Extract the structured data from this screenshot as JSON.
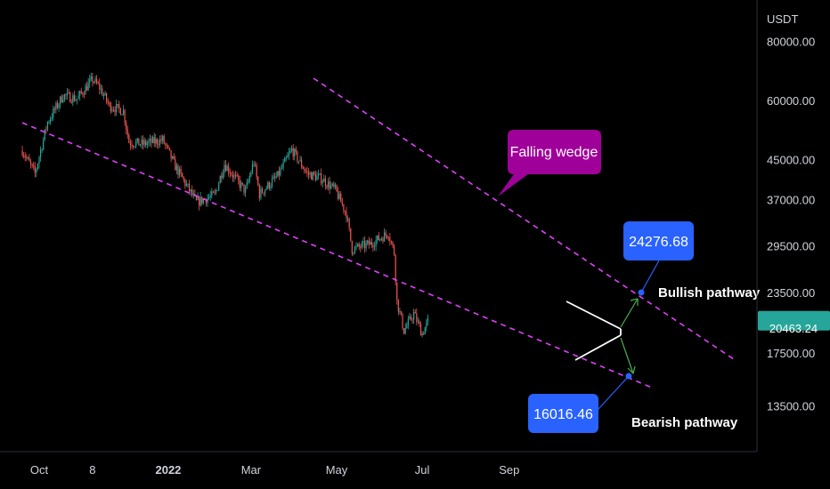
{
  "chart_data": {
    "type": "candlestick",
    "y_scale": "log",
    "currency": "USDT",
    "ylim": [
      10800,
      98000
    ],
    "price_ticks": [
      80000.0,
      60000.0,
      45000.0,
      37000.0,
      29500.0,
      23500.0,
      17500.0,
      13500.0
    ],
    "price_tick_labels": [
      "80000.00",
      "60000.00",
      "45000.00",
      "37000.00",
      "29500.00",
      "23500.00",
      "17500.00",
      "13500.00"
    ],
    "x_ticks": [
      {
        "label": "Oct",
        "date": "2021-10-01",
        "bold": false
      },
      {
        "label": "8",
        "date": "2021-11-08",
        "bold": false
      },
      {
        "label": "2022",
        "date": "2022-01-01",
        "bold": true
      },
      {
        "label": "Mar",
        "date": "2022-03-01",
        "bold": false
      },
      {
        "label": "May",
        "date": "2022-05-01",
        "bold": false
      },
      {
        "label": "Jul",
        "date": "2022-07-01",
        "bold": false
      },
      {
        "label": "Sep",
        "date": "2022-09-01",
        "bold": false
      }
    ],
    "current_price": {
      "label": "20463.24",
      "value": 20463.24
    },
    "price_path": [
      [
        "2021-09-19",
        47000
      ],
      [
        "2021-09-28",
        42000
      ],
      [
        "2021-10-07",
        54000
      ],
      [
        "2021-10-18",
        61500
      ],
      [
        "2021-10-28",
        60500
      ],
      [
        "2021-11-08",
        66500
      ],
      [
        "2021-11-13",
        64000
      ],
      [
        "2021-11-20",
        58500
      ],
      [
        "2021-11-30",
        57000
      ],
      [
        "2021-12-04",
        49000
      ],
      [
        "2021-12-14",
        48500
      ],
      [
        "2021-12-28",
        49500
      ],
      [
        "2022-01-06",
        43500
      ],
      [
        "2022-01-21",
        36500
      ],
      [
        "2022-02-03",
        37800
      ],
      [
        "2022-02-10",
        44000
      ],
      [
        "2022-02-25",
        38500
      ],
      [
        "2022-03-03",
        44500
      ],
      [
        "2022-03-07",
        38000
      ],
      [
        "2022-03-20",
        41500
      ],
      [
        "2022-03-30",
        47200
      ],
      [
        "2022-04-10",
        42000
      ],
      [
        "2022-04-20",
        41000
      ],
      [
        "2022-04-30",
        38800
      ],
      [
        "2022-05-08",
        34500
      ],
      [
        "2022-05-12",
        29000
      ],
      [
        "2022-05-25",
        29800
      ],
      [
        "2022-06-07",
        31400
      ],
      [
        "2022-06-11",
        28500
      ],
      [
        "2022-06-13",
        22500
      ],
      [
        "2022-06-18",
        19500
      ],
      [
        "2022-06-25",
        21200
      ],
      [
        "2022-07-01",
        19200
      ],
      [
        "2022-07-05",
        20400
      ]
    ],
    "annotations": {
      "falling_wedge_label": "Falling wedge",
      "bullish_label": "Bullish pathway",
      "bearish_label": "Bearish pathway",
      "bullish_target": {
        "label": "24276.68",
        "value": 24276.68
      },
      "bearish_target": {
        "label": "16016.46",
        "value": 16016.46
      }
    },
    "colors": {
      "up": "#26a69a",
      "down": "#ef5350",
      "channel": "#e040fb",
      "callout_purple": "#a0009a",
      "target_blue": "#2962ff",
      "current_price": "#26a69a",
      "pathway_arrow": "#4caf50"
    }
  }
}
